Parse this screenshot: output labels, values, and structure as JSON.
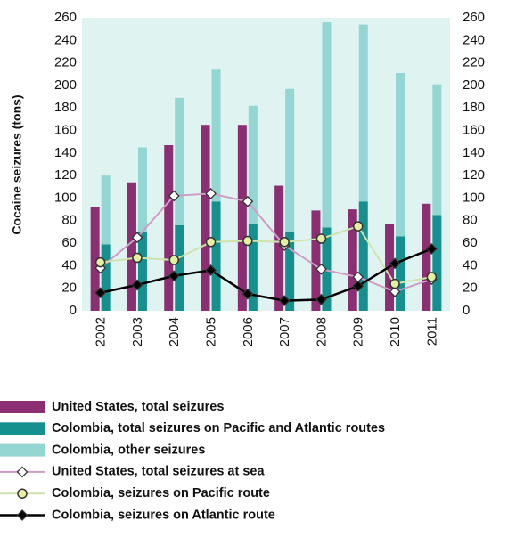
{
  "chart_data": {
    "type": "bar",
    "y_label": "Cocaine seizures (tons)",
    "categories": [
      "2002",
      "2003",
      "2004",
      "2005",
      "2006",
      "2007",
      "2008",
      "2009",
      "2010",
      "2011"
    ],
    "ylim": [
      0,
      260
    ],
    "yticks": [
      0,
      20,
      40,
      60,
      80,
      100,
      120,
      140,
      160,
      180,
      200,
      220,
      240,
      260
    ],
    "y2lim": [
      0,
      260
    ],
    "y2ticks": [
      0,
      20,
      40,
      60,
      80,
      100,
      120,
      140,
      160,
      180,
      200,
      220,
      240,
      260
    ],
    "background": "#dff3f1",
    "legend": "bottom",
    "series": [
      {
        "name": "United States, total seizures",
        "type": "bar",
        "color": "#8c2f72",
        "values": [
          92,
          114,
          147,
          165,
          165,
          111,
          89,
          90,
          77,
          95
        ]
      },
      {
        "name": "Colombia, total seizures on Pacific and Atlantic routes",
        "type": "bar",
        "color": "#16908e",
        "values": [
          59,
          70,
          76,
          97,
          77,
          70,
          74,
          97,
          66,
          85
        ]
      },
      {
        "name": "Colombia, other seizures",
        "type": "bar",
        "stacked": true,
        "color": "#94d6d1",
        "values": [
          61,
          75,
          113,
          117,
          105,
          127,
          182,
          157,
          145,
          116
        ]
      },
      {
        "name": "United States, total seizures at sea",
        "type": "line",
        "color": "#cf9cc6",
        "marker": "diamond",
        "marker_fill": "#ffffff",
        "values": [
          38,
          65,
          102,
          104,
          97,
          58,
          37,
          30,
          17,
          28
        ]
      },
      {
        "name": "Colombia, seizures on Pacific route",
        "type": "line",
        "color": "#cfe3ad",
        "marker": "circle",
        "marker_fill": "#e4efa2",
        "values": [
          43,
          47,
          45,
          61,
          62,
          61,
          64,
          75,
          24,
          30
        ]
      },
      {
        "name": "Colombia, seizures on Atlantic route",
        "type": "line",
        "color": "#000000",
        "marker": "diamond",
        "marker_fill": "#000000",
        "values": [
          16,
          23,
          31,
          36,
          15,
          9,
          10,
          22,
          42,
          55
        ]
      }
    ]
  }
}
